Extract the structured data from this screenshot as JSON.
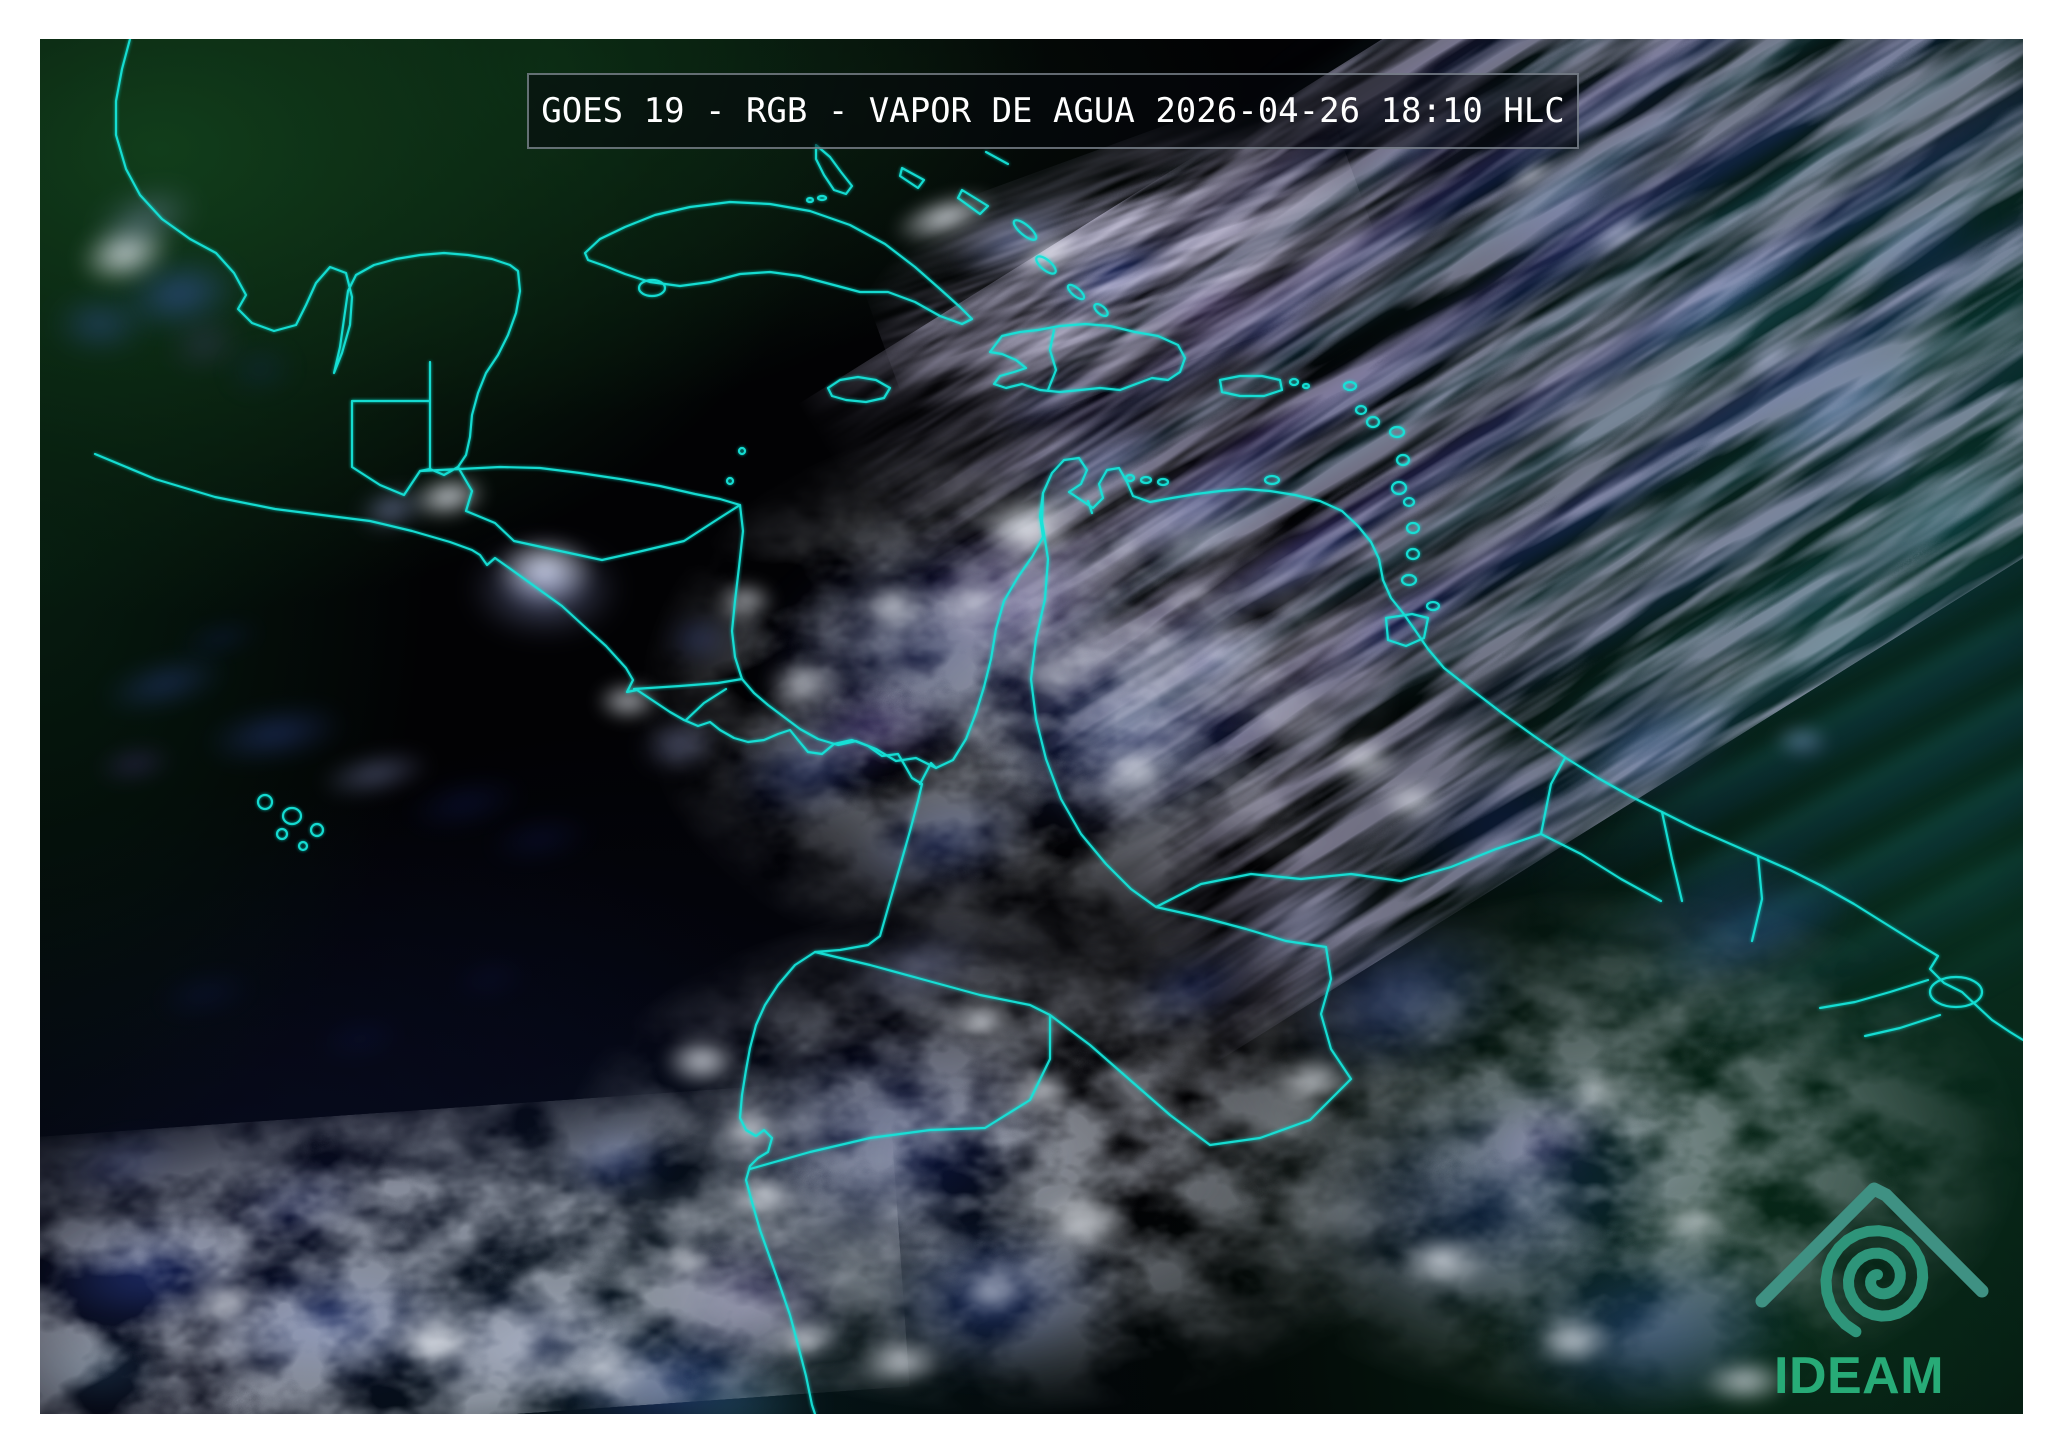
{
  "header": {
    "title": "GOES 19 - RGB - VAPOR DE AGUA 2026-04-26 18:10 HLC"
  },
  "branding": {
    "logo_text": "IDEAM"
  },
  "colors": {
    "page_bg": "#ffffff",
    "image_bg": "#020205",
    "map_outline": "#17e3d8",
    "title_text": "#ffffff",
    "title_bar_bg": "#05080c",
    "title_bar_border": "#96a0aa",
    "logo_wordmark_green": "#27ab77",
    "logo_mountain_teal": "#3f9183",
    "logo_spiral_teal": "#2e957a",
    "cloud_white": "#f2f7ff",
    "cloud_periwinkle": "#adb9fa",
    "cloud_blue": "#4868eb",
    "cloud_purple": "#8458e0",
    "land_green": "#124020",
    "ocean_teal": "#08342c"
  }
}
